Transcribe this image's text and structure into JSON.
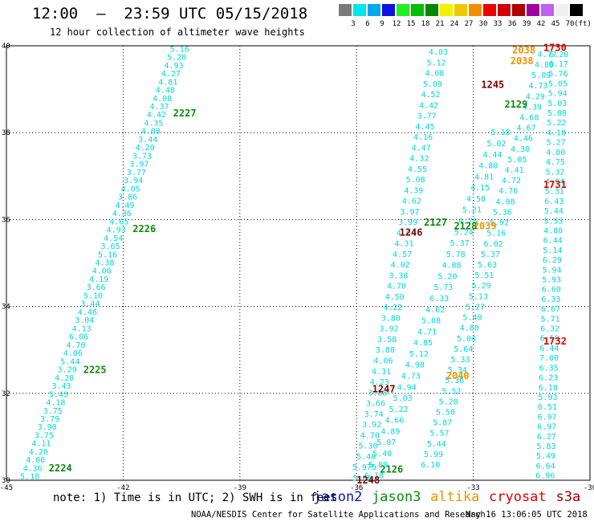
{
  "header": {
    "title": "12:00  —  23:59 UTC 05/15/2018",
    "subtitle": "12 hour collection of altimeter wave heights"
  },
  "legend": {
    "unit": "(ft)",
    "bins": [
      {
        "label": "3",
        "color": "#7a7a7a"
      },
      {
        "label": "6",
        "color": "#00e8e8"
      },
      {
        "label": "9",
        "color": "#00a8f0"
      },
      {
        "label": "12",
        "color": "#1010e0"
      },
      {
        "label": "15",
        "color": "#20f020"
      },
      {
        "label": "18",
        "color": "#00c000"
      },
      {
        "label": "21",
        "color": "#008800"
      },
      {
        "label": "24",
        "color": "#f0f000"
      },
      {
        "label": "27",
        "color": "#f0c800"
      },
      {
        "label": "30",
        "color": "#f09000"
      },
      {
        "label": "33",
        "color": "#f00000"
      },
      {
        "label": "36",
        "color": "#d00000"
      },
      {
        "label": "39",
        "color": "#b00000"
      },
      {
        "label": "42",
        "color": "#a000a0"
      },
      {
        "label": "45",
        "color": "#c060f0"
      },
      {
        "label": "70",
        "color": "#f0f0f0"
      },
      {
        "label": "",
        "color": "#000000"
      }
    ]
  },
  "footer": {
    "note": "note: 1) Time is in UTC; 2) SWH is in feet",
    "credit": "NOAA/NESDIS Center for Satellite Applications and Research",
    "timestamp": "May 16 13:06:05 UTC 2018",
    "satellites": [
      {
        "name": "jason2",
        "color": "#1010d0"
      },
      {
        "name": "jason3",
        "color": "#108810"
      },
      {
        "name": "altika",
        "color": "#f09000"
      },
      {
        "name": "cryosat",
        "color": "#e00000"
      },
      {
        "name": "s3a",
        "color": "#a00000"
      }
    ]
  },
  "chart_data": {
    "type": "scatter",
    "xlim": [
      -45,
      -30
    ],
    "ylim": [
      30,
      40
    ],
    "x_ticks": [
      -45,
      -42,
      -39,
      -36,
      -33,
      -30
    ],
    "y_ticks": [
      30,
      32,
      34,
      36,
      38,
      40
    ],
    "grid": true,
    "value_color": "#00d8d8",
    "tracks": [
      {
        "start": [
          -44.4,
          30.08
        ],
        "end": [
          -40.55,
          39.92
        ],
        "values": [
          "5.18",
          "4.36",
          "4.06",
          "4.20",
          "4.11",
          "3.75",
          "3.90",
          "3.79",
          "3.75",
          "4.18",
          "5.43",
          "3.43",
          "4.20",
          "3.29",
          "5.44",
          "4.06",
          "4.70",
          "6.06",
          "4.13",
          "3.04",
          "4.46",
          "3.44",
          "5.10",
          "3.66",
          "4.19",
          "4.06",
          "4.38",
          "5.16",
          "3.65",
          "4.54",
          "4.93",
          "4.65",
          "4.36",
          "4.49",
          "3.86",
          "4.05",
          "3.94",
          "3.77",
          "3.97",
          "3.73",
          "4.20",
          "3.44",
          "4.08",
          "4.35",
          "4.42",
          "4.37",
          "4.08",
          "4.48",
          "4.81",
          "4.27",
          "4.93",
          "5.20",
          "5.16"
        ],
        "times": [
          {
            "label": "2224",
            "at": 0.02
          },
          {
            "label": "2225",
            "at": 0.25
          },
          {
            "label": "2226",
            "at": 0.58
          },
          {
            "label": "2227",
            "at": 0.85
          }
        ],
        "time_color": "#108810"
      },
      {
        "start": [
          -35.85,
          30.05
        ],
        "end": [
          -33.9,
          39.85
        ],
        "values": [
          "5.06",
          "5.975",
          "5.40",
          "5.30",
          "4.70",
          "3.92",
          "3.74",
          "3.66",
          "3.88",
          "4.23",
          "4.31",
          "4.06",
          "3.80",
          "3.58",
          "3.92",
          "3.80",
          "4.22",
          "4.50",
          "4.70",
          "3.38",
          "4.02",
          "4.57",
          "4.31",
          "4.04",
          "3.99",
          "3.97",
          "4.62",
          "4.39",
          "5.08",
          "4.55",
          "4.32",
          "4.47",
          "4.16",
          "4.45",
          "3.77",
          "4.42",
          "4.52",
          "5.09",
          "4.08",
          "5.12",
          "4.03"
        ],
        "times": [
          {
            "label": "2126",
            "at": 0.02
          },
          {
            "label": "2127",
            "at": 0.6
          }
        ],
        "time_color": "#108810"
      },
      {
        "start": [
          -35.55,
          30.1
        ],
        "end": [
          -32.3,
          38.0
        ],
        "values": [
          "6.18",
          "5.89",
          "5.40",
          "5.07",
          "4.89",
          "4.66",
          "5.22",
          "5.03",
          "4.94",
          "4.73",
          "4.98",
          "5.12",
          "4.85",
          "4.71",
          "5.08",
          "4.62",
          "6.33",
          "5.73",
          "5.20",
          "4.88",
          "5.78",
          "5.37",
          "5.24",
          "4.76",
          "5.21",
          "4.50",
          "4.15",
          "4.81",
          "4.80",
          "4.44",
          "5.02",
          "5.18"
        ],
        "times": [],
        "time_color": "#108810"
      },
      {
        "start": [
          -34.1,
          30.35
        ],
        "end": [
          -31.1,
          39.8
        ],
        "values": [
          "6.10",
          "5.99",
          "5.44",
          "5.57",
          "5.87",
          "5.50",
          "5.20",
          "5.52",
          "5.36",
          "5.34",
          "5.33",
          "5.64",
          "5.04",
          "4.80",
          "5.40",
          "5.27",
          "5.13",
          "5.29",
          "5.51",
          "5.63",
          "5.37",
          "6.02",
          "5.16",
          "5.92",
          "5.36",
          "4.98",
          "4.76",
          "4.72",
          "4.41",
          "5.05",
          "4.30",
          "4.46",
          "4.67",
          "4.68",
          "4.39",
          "4.29",
          "4.73",
          "5.09",
          "4.89",
          "4.77"
        ],
        "times": [],
        "time_color": "#108810"
      },
      {
        "start": [
          -31.15,
          30.1
        ],
        "end": [
          -30.8,
          39.8
        ],
        "values": [
          "6.96",
          "6.64",
          "5.49",
          "5.83",
          "6.27",
          "6.97",
          "6.97",
          "6.51",
          "5.93",
          "6.18",
          "6.23",
          "6.35",
          "7.00",
          "6.44",
          "6.50",
          "6.32",
          "5.71",
          "6.67",
          "6.33",
          "6.60",
          "5.93",
          "5.94",
          "6.29",
          "5.14",
          "6.44",
          "4.80",
          "5.53",
          "5.44",
          "6.43",
          "5.31",
          "4.94",
          "5.32",
          "4.75",
          "4.80",
          "5.27",
          "4.18",
          "5.22",
          "5.08",
          "5.03",
          "5.94",
          "5.05",
          "5.76",
          "6.17",
          "6.20"
        ],
        "times": [],
        "time_color": "#108810"
      }
    ],
    "time_labels": [
      {
        "label": "1730",
        "x": -30.9,
        "y": 39.95,
        "color": "#e00000"
      },
      {
        "label": "1731",
        "x": -30.9,
        "y": 36.8,
        "color": "#e00000"
      },
      {
        "label": "1732",
        "x": -30.9,
        "y": 33.2,
        "color": "#e00000"
      },
      {
        "label": "2038",
        "x": -31.7,
        "y": 39.9,
        "color": "#f09000"
      },
      {
        "label": "2038",
        "x": -31.75,
        "y": 39.65,
        "color": "#f09000"
      },
      {
        "label": "2039",
        "x": -32.7,
        "y": 35.85,
        "color": "#f09000"
      },
      {
        "label": "2040",
        "x": -33.4,
        "y": 32.4,
        "color": "#f09000"
      },
      {
        "label": "1245",
        "x": -32.5,
        "y": 39.1,
        "color": "#800000"
      },
      {
        "label": "1246",
        "x": -34.6,
        "y": 35.7,
        "color": "#800000"
      },
      {
        "label": "1247",
        "x": -35.3,
        "y": 32.1,
        "color": "#800000"
      },
      {
        "label": "1248",
        "x": -35.7,
        "y": 30.0,
        "color": "#800000"
      },
      {
        "label": "2128",
        "x": -33.2,
        "y": 35.85,
        "color": "#108810"
      },
      {
        "label": "2129",
        "x": -31.9,
        "y": 38.65,
        "color": "#108810"
      }
    ]
  }
}
